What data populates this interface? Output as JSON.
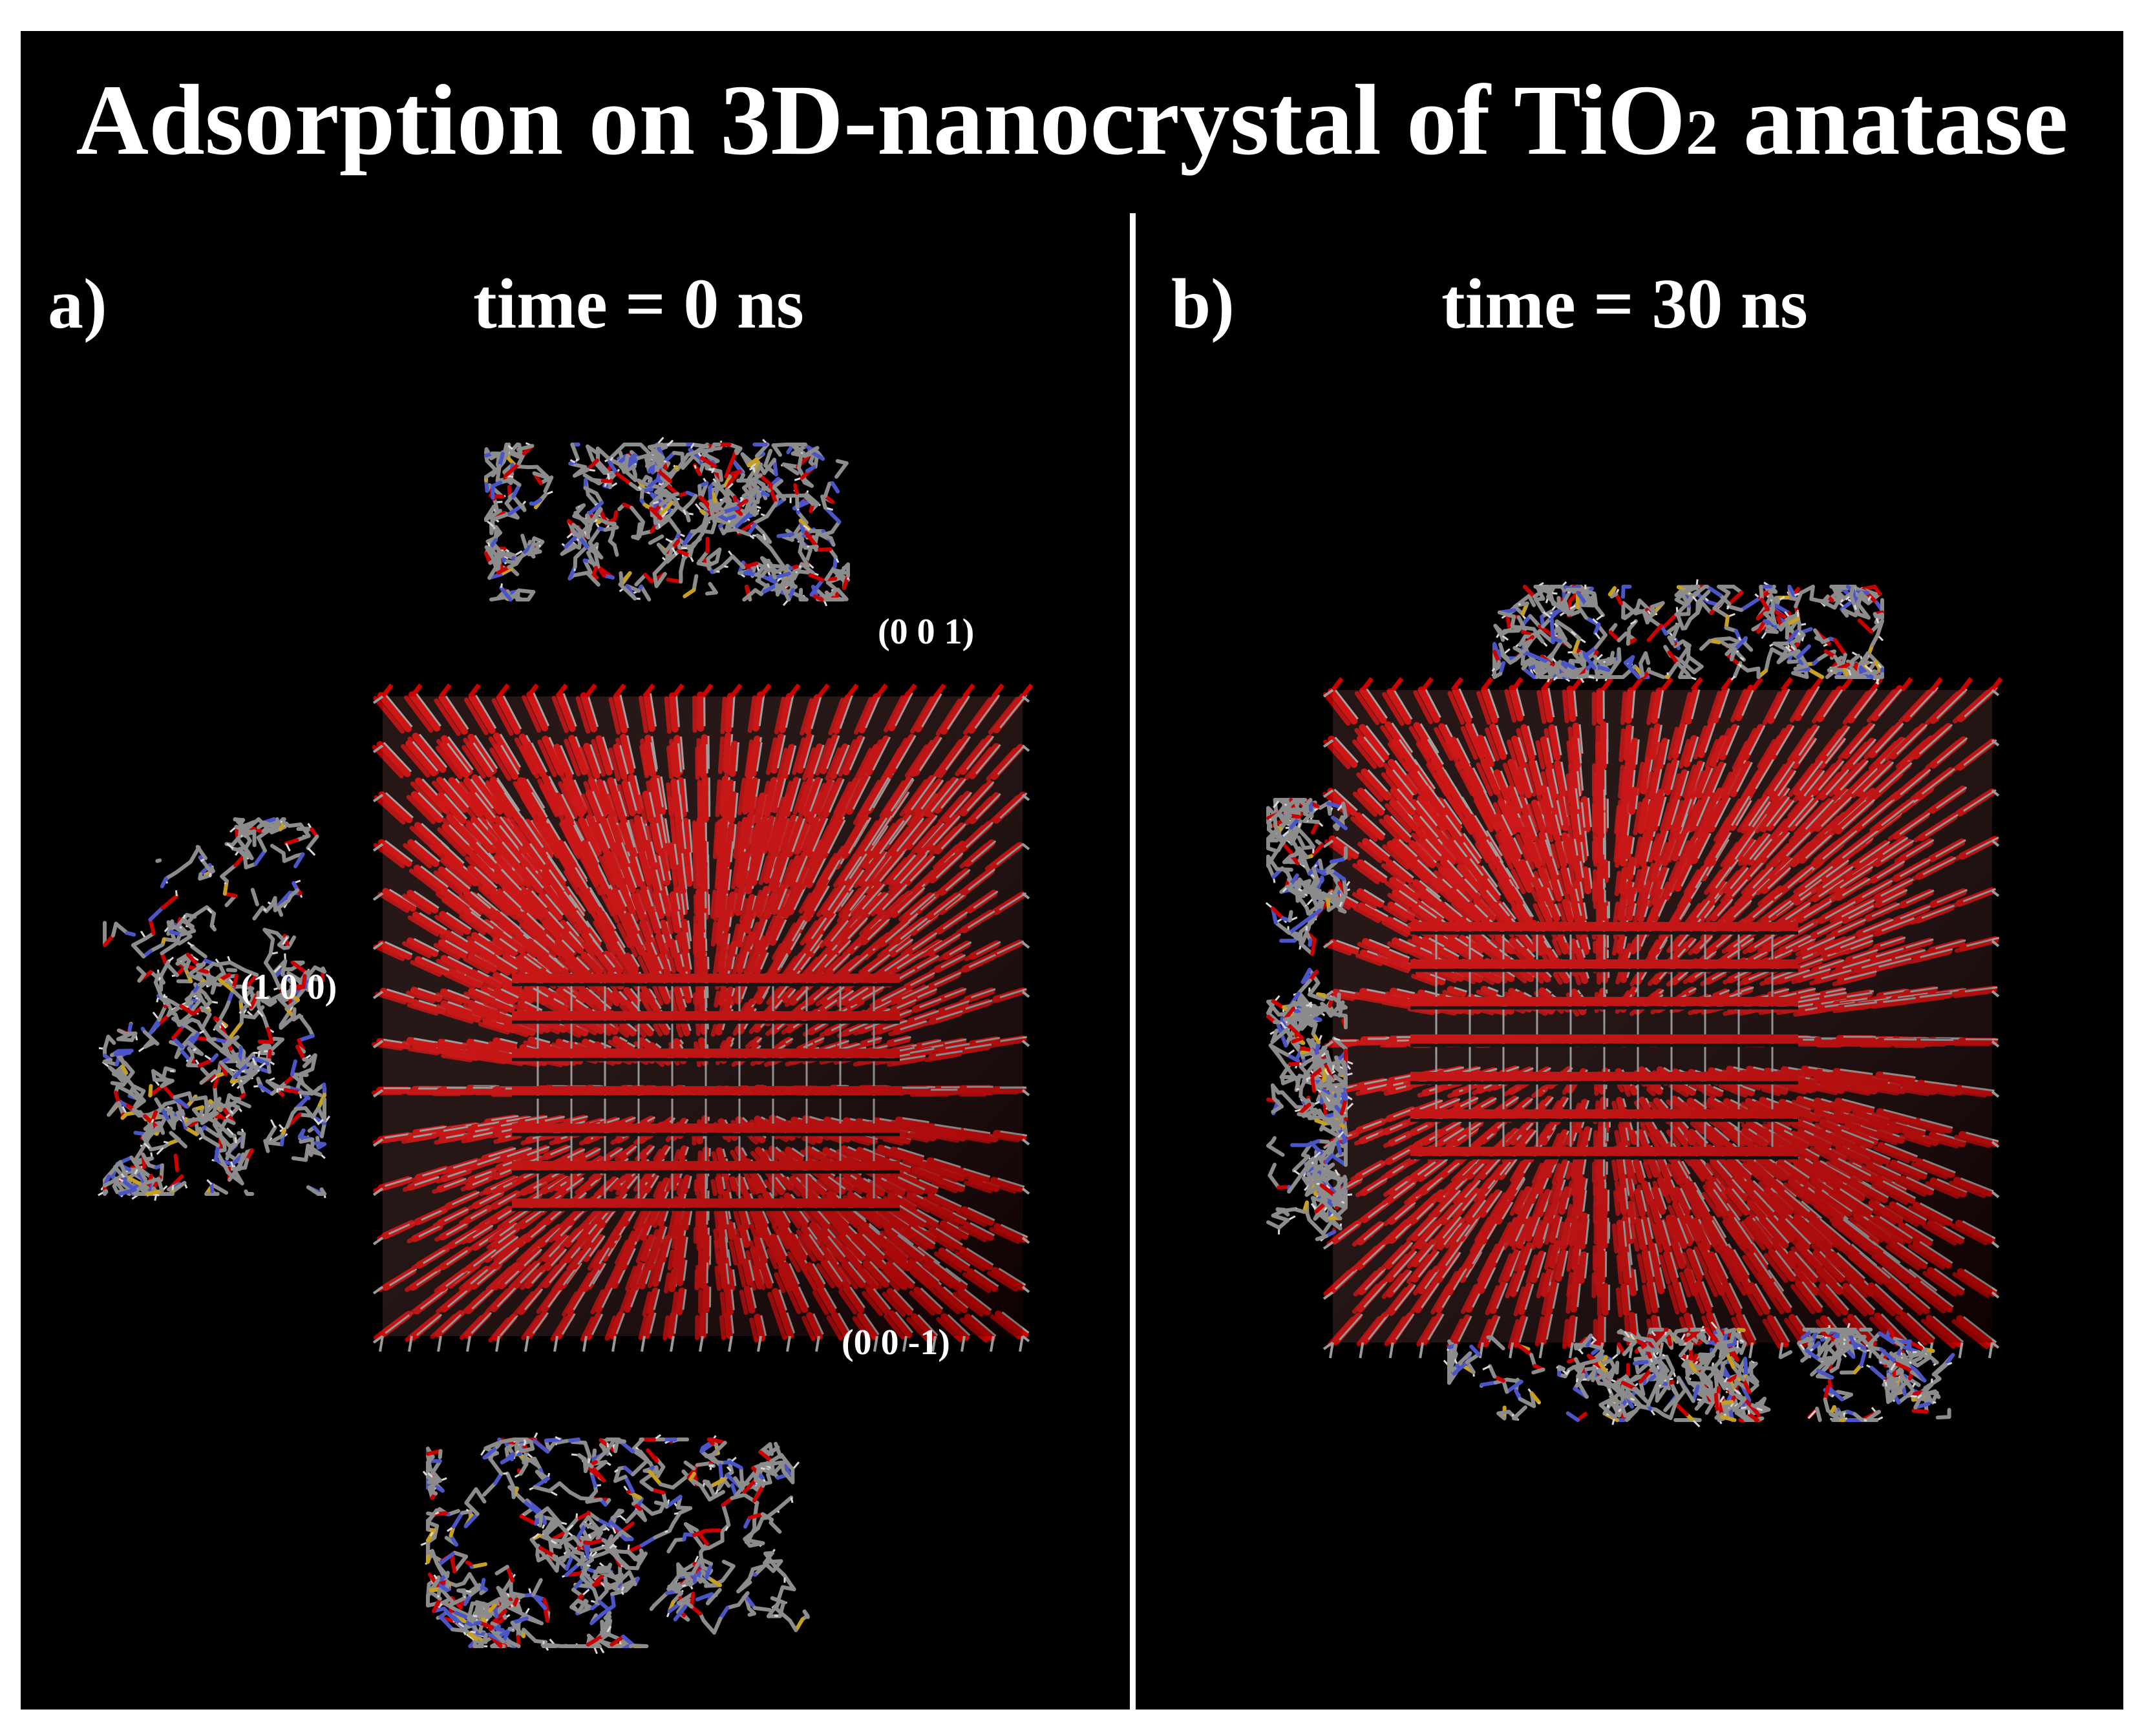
{
  "figure": {
    "title_main": "Adsorption on 3D-nanocrystal of TiO",
    "title_sub": "2",
    "title_tail": " anatase"
  },
  "panel_a": {
    "label": "a)",
    "time": "time = 0 ns",
    "facets": {
      "top": "(0 0 1)",
      "left": "(1 0 0)",
      "bottom": "(0 0 -1)"
    }
  },
  "panel_b": {
    "label": "b)",
    "time": "time = 30 ns"
  },
  "colors": {
    "background": "#000000",
    "oxygen": "#cc0000",
    "titanium": "#9a9a9a",
    "carbon": "#8c8c8c",
    "nitrogen": "#4a55c8",
    "sulfur": "#c8a020"
  }
}
